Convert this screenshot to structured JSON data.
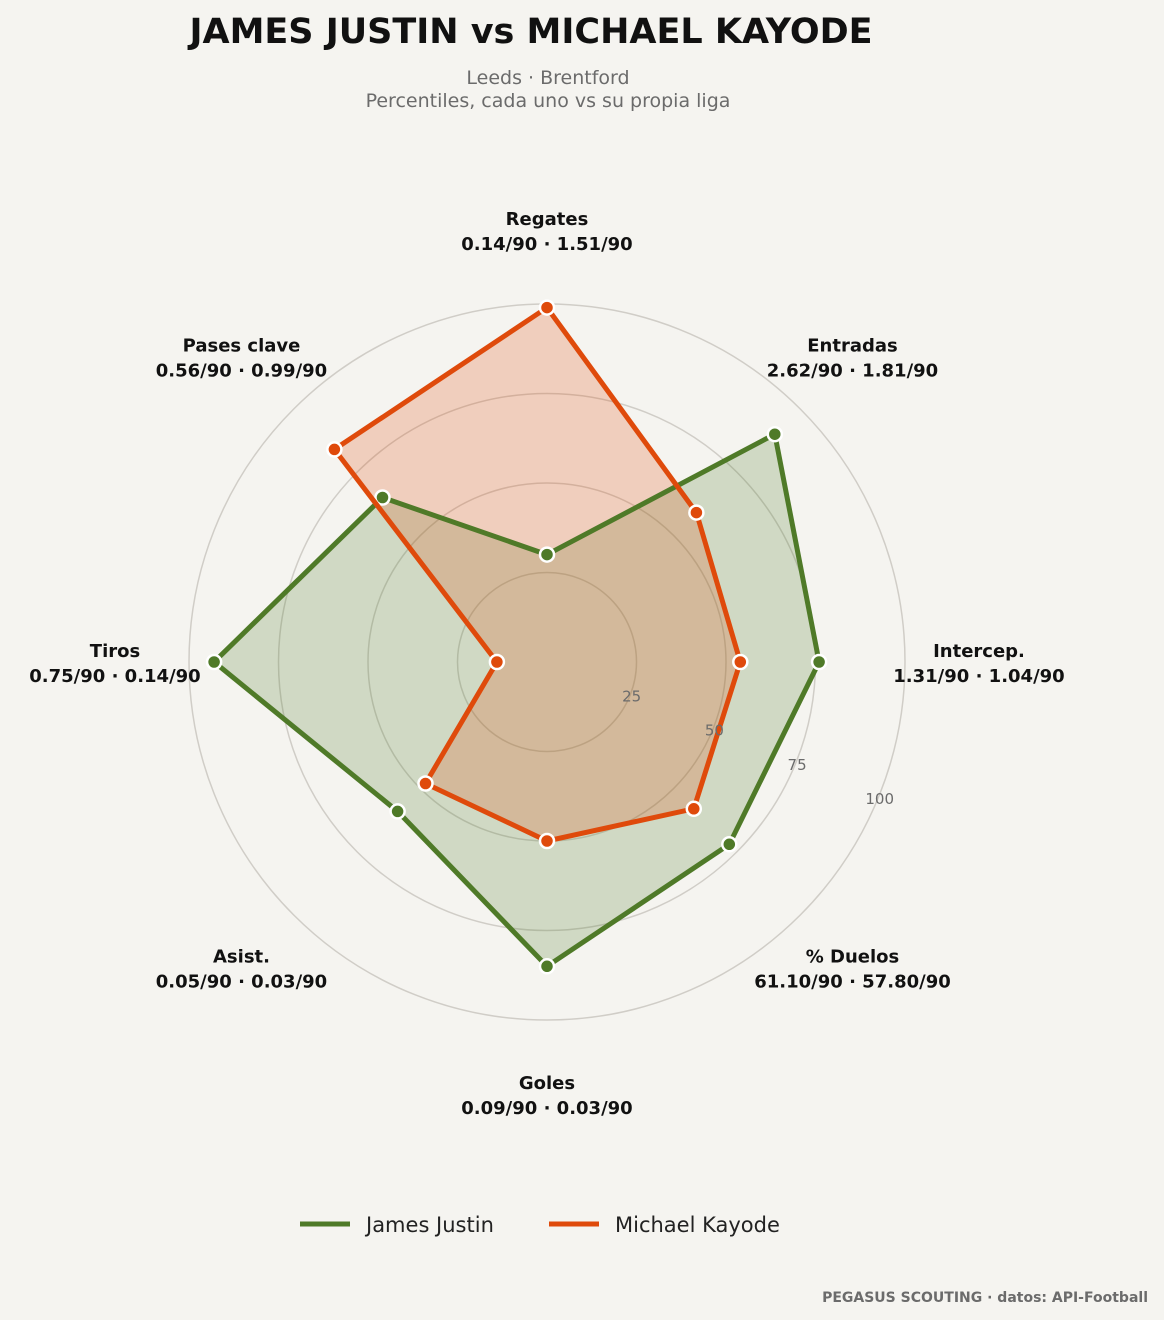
{
  "title": "JAMES JUSTIN  vs  MICHAEL KAYODE",
  "subtitle_line1": "Leeds · Brentford",
  "subtitle_line2": "Percentiles, cada uno vs su propia liga",
  "credit": "PEGASUS SCOUTING · datos: API-Football",
  "colors": {
    "background": "#f5f4f0",
    "grid": "#d0cdc7",
    "player1": "#4f7a28",
    "player2": "#df4a0b"
  },
  "chart_data": {
    "type": "radar",
    "rmax": 100,
    "rings": [
      25,
      50,
      75,
      100
    ],
    "grid": true,
    "legend_position": "bottom-center",
    "axes": [
      {
        "name": "Regates",
        "values_label": "0.14/90 · 1.51/90"
      },
      {
        "name": "Entradas",
        "values_label": "2.62/90 · 1.81/90"
      },
      {
        "name": "Intercep.",
        "values_label": "1.31/90 · 1.04/90"
      },
      {
        "name": "% Duelos",
        "values_label": "61.10/90 · 57.80/90"
      },
      {
        "name": "Goles",
        "values_label": "0.09/90 · 0.03/90"
      },
      {
        "name": "Asist.",
        "values_label": "0.05/90 · 0.03/90"
      },
      {
        "name": "Tiros",
        "values_label": "0.75/90 · 0.14/90"
      },
      {
        "name": "Pases clave",
        "values_label": "0.56/90 · 0.99/90"
      }
    ],
    "series": [
      {
        "name": "James Justin",
        "color": "#4f7a28",
        "values": [
          30,
          90,
          76,
          72,
          85,
          59,
          93,
          65
        ]
      },
      {
        "name": "Michael Kayode",
        "color": "#df4a0b",
        "values": [
          99,
          59,
          54,
          58,
          50,
          48,
          14,
          84
        ]
      }
    ]
  }
}
